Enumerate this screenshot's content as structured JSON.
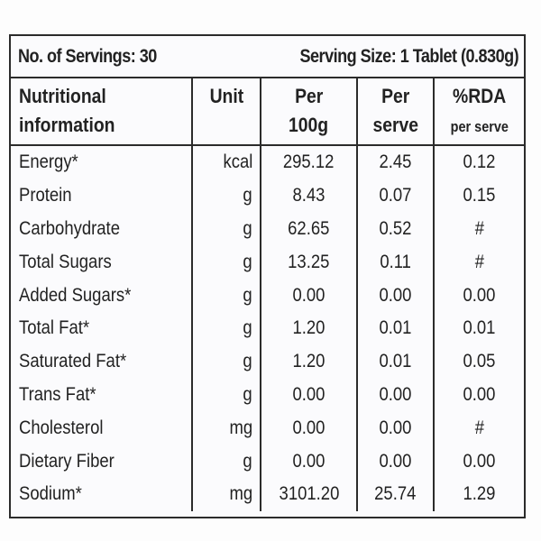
{
  "servings": {
    "count_label": "No. of Servings: 30",
    "size_label": "Serving Size: 1 Tablet (0.830g)"
  },
  "headers": {
    "name_line1": "Nutritional",
    "name_line2": "information",
    "unit": "Unit",
    "per100_line1": "Per",
    "per100_line2": "100g",
    "perserve_line1": "Per",
    "perserve_line2": "serve",
    "rda_line1": "%RDA",
    "rda_line2": "per serve"
  },
  "rows": [
    {
      "name": "Energy*",
      "unit": "kcal",
      "per100": "295.12",
      "perserve": "2.45",
      "rda": "0.12"
    },
    {
      "name": "Protein",
      "unit": "g",
      "per100": "8.43",
      "perserve": "0.07",
      "rda": "0.15"
    },
    {
      "name": "Carbohydrate",
      "unit": "g",
      "per100": "62.65",
      "perserve": "0.52",
      "rda": "#"
    },
    {
      "name": "Total Sugars",
      "unit": "g",
      "per100": "13.25",
      "perserve": "0.11",
      "rda": "#"
    },
    {
      "name": "Added Sugars*",
      "unit": "g",
      "per100": "0.00",
      "perserve": "0.00",
      "rda": "0.00"
    },
    {
      "name": "Total Fat*",
      "unit": "g",
      "per100": "1.20",
      "perserve": "0.01",
      "rda": "0.01"
    },
    {
      "name": "Saturated Fat*",
      "unit": "g",
      "per100": "1.20",
      "perserve": "0.01",
      "rda": "0.05"
    },
    {
      "name": "Trans Fat*",
      "unit": "g",
      "per100": "0.00",
      "perserve": "0.00",
      "rda": "0.00"
    },
    {
      "name": "Cholesterol",
      "unit": "mg",
      "per100": "0.00",
      "perserve": "0.00",
      "rda": "#"
    },
    {
      "name": "Dietary Fiber",
      "unit": "g",
      "per100": "0.00",
      "perserve": "0.00",
      "rda": "0.00"
    },
    {
      "name": "Sodium*",
      "unit": "mg",
      "per100": "3101.20",
      "perserve": "25.74",
      "rda": "1.29"
    }
  ]
}
